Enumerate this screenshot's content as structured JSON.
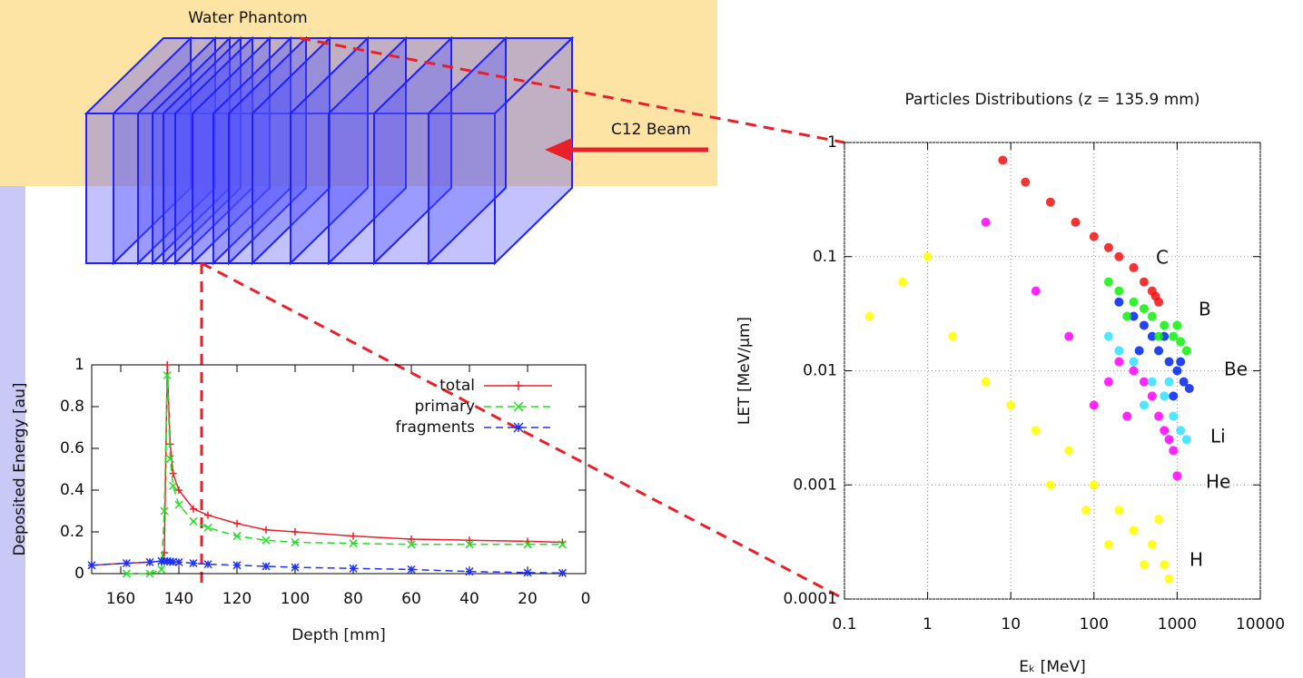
{
  "diagram": {
    "phantom_label": "Water Phantom",
    "beam_label": "C12 Beam"
  },
  "chart_data": [
    {
      "type": "line",
      "xlabel": "Depth [mm]",
      "ylabel": "Deposited Energy [au]",
      "x": [
        170,
        158,
        150,
        146,
        145,
        144,
        143,
        142,
        140,
        135,
        130,
        120,
        110,
        100,
        80,
        60,
        40,
        20,
        8
      ],
      "series": [
        {
          "name": "total",
          "color": "#e8202a",
          "values": [
            0.04,
            0.05,
            0.055,
            0.06,
            0.1,
            1.0,
            0.62,
            0.48,
            0.4,
            0.31,
            0.28,
            0.24,
            0.21,
            0.2,
            0.18,
            0.165,
            0.16,
            0.155,
            0.15
          ]
        },
        {
          "name": "primary",
          "color": "#22dd22",
          "values": [
            null,
            0,
            0,
            0.02,
            0.3,
            0.95,
            0.55,
            0.42,
            0.33,
            0.25,
            0.22,
            0.18,
            0.16,
            0.15,
            0.145,
            0.14,
            0.14,
            0.14,
            0.14
          ]
        },
        {
          "name": "fragments",
          "color": "#2233ee",
          "values": [
            0.04,
            0.05,
            0.055,
            0.06,
            0.06,
            0.06,
            0.058,
            0.056,
            0.055,
            0.05,
            0.045,
            0.04,
            0.035,
            0.03,
            0.025,
            0.02,
            0.01,
            0.005,
            0.003
          ]
        }
      ],
      "xlim": [
        170,
        0
      ],
      "xticks": [
        160,
        140,
        120,
        100,
        80,
        60,
        40,
        20,
        0
      ],
      "ylim": [
        0,
        1
      ],
      "yticks": [
        0,
        0.2,
        0.4,
        0.6,
        0.8,
        1
      ],
      "grid": false,
      "legend": "top-right"
    },
    {
      "type": "scatter",
      "title": "Particles Distributions (z = 135.9 mm)",
      "xlabel": "Eₖ [MeV]",
      "ylabel": "LET [MeV/μm]",
      "xscale": "log",
      "yscale": "log",
      "grid": true,
      "xlim": [
        0.1,
        10000
      ],
      "xticks": [
        0.1,
        1,
        10,
        100,
        1000,
        10000
      ],
      "ylim": [
        0.0001,
        1
      ],
      "yticks": [
        0.0001,
        0.001,
        0.01,
        0.1,
        1
      ],
      "series": [
        {
          "name": "H",
          "color": "#ffff00",
          "x": [
            0.2,
            0.5,
            1,
            2,
            5,
            10,
            20,
            50,
            100,
            200,
            300,
            500,
            700,
            800,
            30,
            80,
            150,
            400,
            600
          ],
          "values": [
            0.03,
            0.06,
            0.1,
            0.02,
            0.008,
            0.005,
            0.003,
            0.002,
            0.001,
            0.0006,
            0.0004,
            0.0003,
            0.0002,
            0.00015,
            0.001,
            0.0006,
            0.0003,
            0.0002,
            0.0005
          ]
        },
        {
          "name": "He",
          "color": "#ff00ff",
          "x": [
            5,
            20,
            100,
            200,
            300,
            400,
            500,
            600,
            700,
            800,
            900,
            150,
            250,
            1000,
            50
          ],
          "values": [
            0.2,
            0.05,
            0.005,
            0.012,
            0.01,
            0.008,
            0.006,
            0.004,
            0.003,
            0.0025,
            0.002,
            0.008,
            0.004,
            0.0012,
            0.02
          ]
        },
        {
          "name": "Li",
          "color": "#33e0ff",
          "x": [
            150,
            200,
            300,
            500,
            700,
            900,
            1100,
            1300,
            400,
            800
          ],
          "values": [
            0.02,
            0.015,
            0.012,
            0.008,
            0.006,
            0.004,
            0.003,
            0.0025,
            0.005,
            0.008
          ]
        },
        {
          "name": "Be",
          "color": "#0022ee",
          "x": [
            200,
            300,
            400,
            500,
            600,
            800,
            1000,
            1200,
            1400,
            350,
            700,
            900,
            1100
          ],
          "values": [
            0.04,
            0.03,
            0.025,
            0.02,
            0.015,
            0.012,
            0.01,
            0.008,
            0.007,
            0.015,
            0.02,
            0.006,
            0.012
          ]
        },
        {
          "name": "B",
          "color": "#11ee11",
          "x": [
            150,
            200,
            300,
            400,
            500,
            700,
            900,
            1100,
            1300,
            250,
            600,
            1000
          ],
          "values": [
            0.06,
            0.05,
            0.04,
            0.035,
            0.03,
            0.025,
            0.02,
            0.018,
            0.015,
            0.03,
            0.02,
            0.025
          ]
        },
        {
          "name": "C",
          "color": "#ee1111",
          "x": [
            8,
            15,
            30,
            60,
            100,
            150,
            200,
            300,
            400,
            500,
            550,
            600
          ],
          "values": [
            0.7,
            0.45,
            0.3,
            0.2,
            0.15,
            0.12,
            0.1,
            0.08,
            0.06,
            0.05,
            0.045,
            0.04
          ]
        }
      ]
    }
  ]
}
